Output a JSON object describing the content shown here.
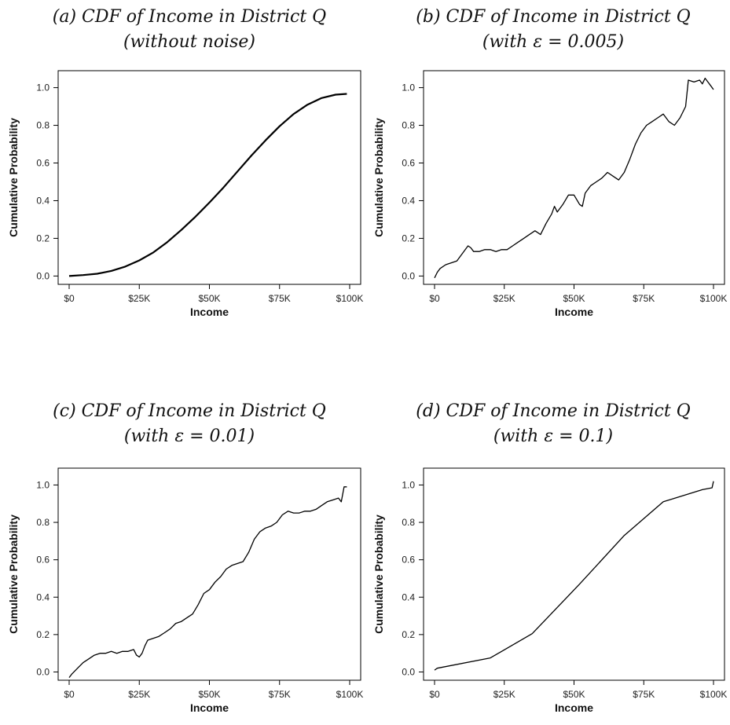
{
  "chart_data": [
    {
      "type": "line",
      "title_line1": "(a) CDF of Income in District Q",
      "title_line2": "(without noise)",
      "xlabel": "Income",
      "ylabel": "Cumulative Probability",
      "xlim": [
        0,
        100000
      ],
      "ylim": [
        -0.04,
        1.09
      ],
      "x_ticks": [
        0,
        25000,
        50000,
        75000,
        100000
      ],
      "x_tick_labels": [
        "$0",
        "$25K",
        "$50K",
        "$75K",
        "$100K"
      ],
      "y_ticks": [
        0,
        0.2,
        0.4,
        0.6,
        0.8,
        1.0
      ],
      "y_tick_labels": [
        "0.0",
        "0.2",
        "0.4",
        "0.6",
        "0.8",
        "1.0"
      ],
      "grid": false,
      "series": [
        {
          "x": [
            0,
            5000,
            10000,
            15000,
            20000,
            25000,
            30000,
            35000,
            40000,
            45000,
            50000,
            55000,
            60000,
            65000,
            70000,
            75000,
            80000,
            85000,
            90000,
            95000,
            99000
          ],
          "values": [
            0.0,
            0.005,
            0.012,
            0.027,
            0.05,
            0.083,
            0.125,
            0.18,
            0.245,
            0.315,
            0.39,
            0.47,
            0.555,
            0.64,
            0.72,
            0.795,
            0.86,
            0.91,
            0.945,
            0.963,
            0.967
          ]
        }
      ]
    },
    {
      "type": "line",
      "title_line1": "(b) CDF of Income in District Q",
      "title_line2": "(with ε = 0.005)",
      "xlabel": "Income",
      "ylabel": "Cumulative Probability",
      "xlim": [
        0,
        100000
      ],
      "ylim": [
        -0.04,
        1.09
      ],
      "x_ticks": [
        0,
        25000,
        50000,
        75000,
        100000
      ],
      "x_tick_labels": [
        "$0",
        "$25K",
        "$50K",
        "$75K",
        "$100K"
      ],
      "y_ticks": [
        0,
        0.2,
        0.4,
        0.6,
        0.8,
        1.0
      ],
      "y_tick_labels": [
        "0.0",
        "0.2",
        "0.4",
        "0.6",
        "0.8",
        "1.0"
      ],
      "grid": false,
      "series": [
        {
          "x": [
            0,
            1000,
            2000,
            4000,
            6000,
            8000,
            10000,
            12000,
            13000,
            14000,
            16000,
            18000,
            20000,
            22000,
            24000,
            26000,
            28000,
            30000,
            32000,
            34000,
            36000,
            37000,
            38000,
            40000,
            42000,
            43000,
            44000,
            46000,
            48000,
            50000,
            52000,
            53000,
            54000,
            56000,
            58000,
            60000,
            62000,
            64000,
            66000,
            68000,
            70000,
            72000,
            74000,
            76000,
            78000,
            80000,
            82000,
            84000,
            86000,
            88000,
            90000,
            91000,
            93000,
            95000,
            96000,
            97000,
            98000,
            99000,
            100000
          ],
          "values": [
            -0.01,
            0.02,
            0.04,
            0.06,
            0.07,
            0.08,
            0.12,
            0.16,
            0.15,
            0.13,
            0.13,
            0.14,
            0.14,
            0.13,
            0.14,
            0.14,
            0.16,
            0.18,
            0.2,
            0.22,
            0.24,
            0.23,
            0.22,
            0.28,
            0.33,
            0.37,
            0.34,
            0.38,
            0.43,
            0.43,
            0.38,
            0.37,
            0.44,
            0.48,
            0.5,
            0.52,
            0.55,
            0.53,
            0.51,
            0.55,
            0.62,
            0.7,
            0.76,
            0.8,
            0.82,
            0.84,
            0.86,
            0.82,
            0.8,
            0.84,
            0.9,
            1.04,
            1.03,
            1.04,
            1.02,
            1.05,
            1.03,
            1.01,
            0.99
          ]
        }
      ]
    },
    {
      "type": "line",
      "title_line1": "(c) CDF of Income in District Q",
      "title_line2": "(with ε = 0.01)",
      "xlabel": "Income",
      "ylabel": "Cumulative Probability",
      "xlim": [
        0,
        100000
      ],
      "ylim": [
        -0.04,
        1.09
      ],
      "x_ticks": [
        0,
        25000,
        50000,
        75000,
        100000
      ],
      "x_tick_labels": [
        "$0",
        "$25K",
        "$50K",
        "$75K",
        "$100K"
      ],
      "y_ticks": [
        0,
        0.2,
        0.4,
        0.6,
        0.8,
        1.0
      ],
      "y_tick_labels": [
        "0.0",
        "0.2",
        "0.4",
        "0.6",
        "0.8",
        "1.0"
      ],
      "grid": false,
      "series": [
        {
          "x": [
            0,
            1000,
            3000,
            5000,
            7000,
            9000,
            11000,
            13000,
            15000,
            17000,
            19000,
            21000,
            23000,
            24000,
            25000,
            26000,
            27000,
            28000,
            30000,
            32000,
            34000,
            36000,
            38000,
            40000,
            42000,
            44000,
            46000,
            48000,
            50000,
            52000,
            54000,
            56000,
            58000,
            60000,
            62000,
            64000,
            66000,
            68000,
            70000,
            72000,
            74000,
            76000,
            78000,
            80000,
            82000,
            84000,
            86000,
            88000,
            90000,
            92000,
            94000,
            96000,
            97000,
            98000,
            99000
          ],
          "values": [
            -0.03,
            -0.01,
            0.02,
            0.05,
            0.07,
            0.09,
            0.1,
            0.1,
            0.11,
            0.1,
            0.11,
            0.11,
            0.12,
            0.09,
            0.08,
            0.1,
            0.14,
            0.17,
            0.18,
            0.19,
            0.21,
            0.23,
            0.26,
            0.27,
            0.29,
            0.31,
            0.36,
            0.42,
            0.44,
            0.48,
            0.51,
            0.55,
            0.57,
            0.58,
            0.59,
            0.64,
            0.71,
            0.75,
            0.77,
            0.78,
            0.8,
            0.84,
            0.86,
            0.85,
            0.85,
            0.86,
            0.86,
            0.87,
            0.89,
            0.91,
            0.92,
            0.93,
            0.91,
            0.99,
            0.99
          ]
        }
      ]
    },
    {
      "type": "line",
      "title_line1": "(d) CDF of Income in District Q",
      "title_line2": "(with ε = 0.1)",
      "xlabel": "Income",
      "ylabel": "Cumulative Probability",
      "xlim": [
        0,
        100000
      ],
      "ylim": [
        -0.04,
        1.09
      ],
      "x_ticks": [
        0,
        25000,
        50000,
        75000,
        100000
      ],
      "x_tick_labels": [
        "$0",
        "$25K",
        "$50K",
        "$75K",
        "$100K"
      ],
      "y_ticks": [
        0,
        0.2,
        0.4,
        0.6,
        0.8,
        1.0
      ],
      "y_tick_labels": [
        "0.0",
        "0.2",
        "0.4",
        "0.6",
        "0.8",
        "1.0"
      ],
      "grid": false,
      "series": [
        {
          "x": [
            0,
            1000,
            20000,
            35000,
            52000,
            68000,
            82000,
            96000,
            99500,
            100000
          ],
          "values": [
            0.01,
            0.02,
            0.075,
            0.205,
            0.47,
            0.73,
            0.91,
            0.975,
            0.985,
            1.02
          ]
        }
      ]
    }
  ]
}
